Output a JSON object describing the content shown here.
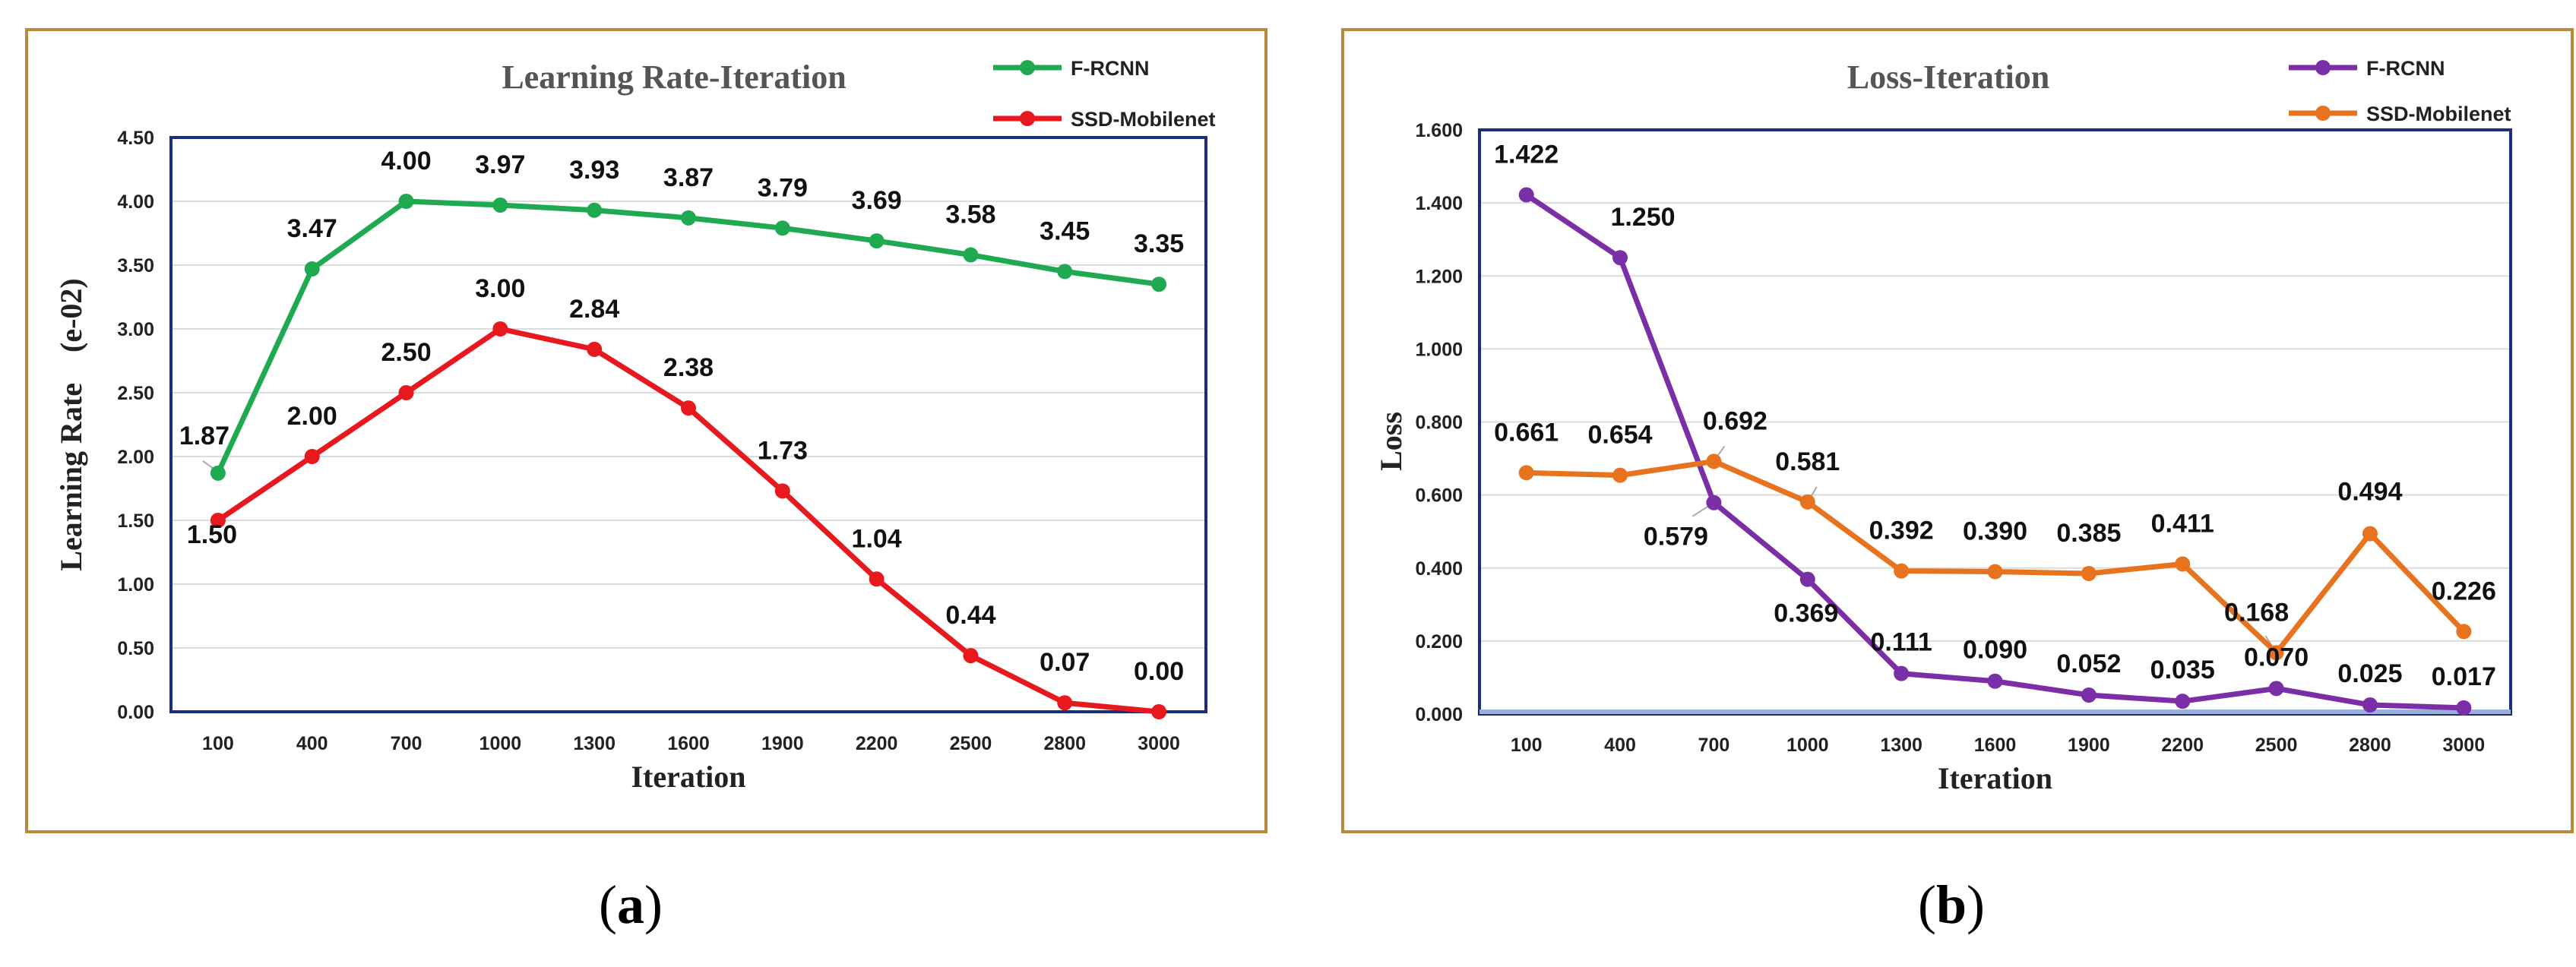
{
  "chart_data": [
    {
      "id": "a",
      "type": "line",
      "title": "Learning Rate-Iteration",
      "xlabel": "Iteration",
      "ylabel": "Learning Rate    (e-02)",
      "categories": [
        "100",
        "400",
        "700",
        "1000",
        "1300",
        "1600",
        "1900",
        "2200",
        "2500",
        "2800",
        "3000"
      ],
      "ylim": [
        0,
        4.5
      ],
      "yticks": [
        "0.00",
        "0.50",
        "1.00",
        "1.50",
        "2.00",
        "2.50",
        "3.00",
        "3.50",
        "4.00",
        "4.50"
      ],
      "grid": true,
      "legend_position": "top-right",
      "series": [
        {
          "name": "F-RCNN",
          "color": "#1faa52",
          "values": [
            1.87,
            3.47,
            4.0,
            3.97,
            3.93,
            3.87,
            3.79,
            3.69,
            3.58,
            3.45,
            3.35
          ],
          "labels": [
            "1.87",
            "3.47",
            "4.00",
            "3.97",
            "3.93",
            "3.87",
            "3.79",
            "3.69",
            "3.58",
            "3.45",
            "3.35"
          ]
        },
        {
          "name": "SSD-Mobilenet",
          "color": "#e8191e",
          "values": [
            1.5,
            2.0,
            2.5,
            3.0,
            2.84,
            2.38,
            1.73,
            1.04,
            0.44,
            0.07,
            0.0
          ],
          "labels": [
            "1.50",
            "2.00",
            "2.50",
            "3.00",
            "2.84",
            "2.38",
            "1.73",
            "1.04",
            "0.44",
            "0.07",
            "0.00"
          ]
        }
      ]
    },
    {
      "id": "b",
      "type": "line",
      "title": "Loss-Iteration",
      "xlabel": "Iteration",
      "ylabel": "Loss",
      "categories": [
        "100",
        "400",
        "700",
        "1000",
        "1300",
        "1600",
        "1900",
        "2200",
        "2500",
        "2800",
        "3000"
      ],
      "ylim": [
        0,
        1.6
      ],
      "yticks": [
        "0.000",
        "0.200",
        "0.400",
        "0.600",
        "0.800",
        "1.000",
        "1.200",
        "1.400",
        "1.600"
      ],
      "grid": true,
      "legend_position": "top-right",
      "series": [
        {
          "name": "F-RCNN",
          "color": "#7b2fa6",
          "values": [
            1.422,
            1.25,
            0.579,
            0.369,
            0.111,
            0.09,
            0.052,
            0.035,
            0.07,
            0.025,
            0.017
          ],
          "labels": [
            "1.422",
            "1.250",
            "0.579",
            "0.369",
            "0.111",
            "0.090",
            "0.052",
            "0.035",
            "0.070",
            "0.025",
            "0.017"
          ]
        },
        {
          "name": "SSD-Mobilenet",
          "color": "#e8731f",
          "values": [
            0.661,
            0.654,
            0.692,
            0.581,
            0.392,
            0.39,
            0.385,
            0.411,
            0.168,
            0.494,
            0.226
          ],
          "labels": [
            "0.661",
            "0.654",
            "0.692",
            "0.581",
            "0.392",
            "0.390",
            "0.385",
            "0.411",
            "0.168",
            "0.494",
            "0.226"
          ]
        }
      ]
    }
  ],
  "captions": {
    "a": {
      "open": "(",
      "letter": "a",
      "close": ")"
    },
    "b": {
      "open": "(",
      "letter": "b",
      "close": ")"
    }
  }
}
